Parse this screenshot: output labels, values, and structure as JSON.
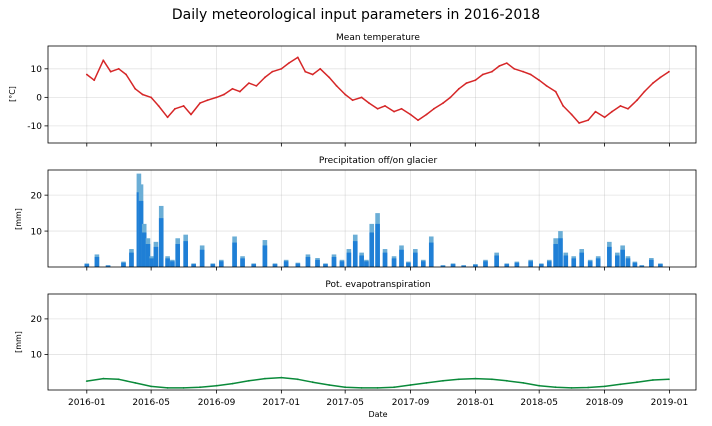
{
  "figure": {
    "title": "Daily meteorological input parameters in 2016-2018",
    "xlabel": "Date"
  },
  "chart_data": [
    {
      "type": "line",
      "title": "Mean temperature",
      "ylabel": "[°C]",
      "ylim": [
        -16,
        18
      ],
      "yticks": [
        -10,
        0,
        10
      ],
      "x_range": [
        "2016-01-01",
        "2018-12-31"
      ],
      "grid": true,
      "series": [
        {
          "color": "#d62728",
          "x": [
            "2016-01-01",
            "2016-01-15",
            "2016-02-01",
            "2016-02-15",
            "2016-03-01",
            "2016-03-15",
            "2016-04-01",
            "2016-04-15",
            "2016-05-01",
            "2016-05-15",
            "2016-06-01",
            "2016-06-15",
            "2016-07-01",
            "2016-07-15",
            "2016-08-01",
            "2016-08-15",
            "2016-09-01",
            "2016-09-15",
            "2016-10-01",
            "2016-10-15",
            "2016-11-01",
            "2016-11-15",
            "2016-12-01",
            "2016-12-15",
            "2017-01-01",
            "2017-01-15",
            "2017-02-01",
            "2017-02-15",
            "2017-03-01",
            "2017-03-15",
            "2017-04-01",
            "2017-04-15",
            "2017-05-01",
            "2017-05-15",
            "2017-06-01",
            "2017-06-15",
            "2017-07-01",
            "2017-07-15",
            "2017-08-01",
            "2017-08-15",
            "2017-09-01",
            "2017-09-15",
            "2017-10-01",
            "2017-10-15",
            "2017-11-01",
            "2017-11-15",
            "2017-12-01",
            "2017-12-15",
            "2018-01-01",
            "2018-01-15",
            "2018-02-01",
            "2018-02-15",
            "2018-03-01",
            "2018-03-15",
            "2018-04-01",
            "2018-04-15",
            "2018-05-01",
            "2018-05-15",
            "2018-06-01",
            "2018-06-15",
            "2018-07-01",
            "2018-07-15",
            "2018-08-01",
            "2018-08-15",
            "2018-09-01",
            "2018-09-15",
            "2018-10-01",
            "2018-10-15",
            "2018-11-01",
            "2018-11-15",
            "2018-12-01",
            "2018-12-15",
            "2018-12-31"
          ],
          "values": [
            8,
            6,
            13,
            9,
            10,
            8,
            3,
            1,
            0,
            -3,
            -7,
            -4,
            -3,
            -6,
            -2,
            -1,
            0,
            1,
            3,
            2,
            5,
            4,
            7,
            9,
            10,
            12,
            14,
            9,
            8,
            10,
            7,
            4,
            1,
            -1,
            0,
            -2,
            -4,
            -3,
            -5,
            -4,
            -6,
            -8,
            -6,
            -4,
            -2,
            0,
            3,
            5,
            6,
            8,
            9,
            11,
            12,
            10,
            9,
            8,
            6,
            4,
            2,
            -3,
            -6,
            -9,
            -8,
            -5,
            -7,
            -5,
            -3,
            -4,
            -1,
            2,
            5,
            7,
            9
          ]
        }
      ]
    },
    {
      "type": "bar",
      "title": "Precipitation off/on glacier",
      "ylabel": "[mm]",
      "ylim": [
        0,
        27
      ],
      "yticks": [
        10,
        20
      ],
      "x_range": [
        "2016-01-01",
        "2018-12-31"
      ],
      "grid": true,
      "series": [
        {
          "name": "",
          "color": "#6baed6",
          "dates": [
            "2016-01-01",
            "2016-01-20",
            "2016-02-10",
            "2016-03-10",
            "2016-03-25",
            "2016-04-08",
            "2016-04-12",
            "2016-04-18",
            "2016-04-25",
            "2016-05-02",
            "2016-05-10",
            "2016-05-20",
            "2016-06-01",
            "2016-06-10",
            "2016-06-20",
            "2016-07-05",
            "2016-07-20",
            "2016-08-05",
            "2016-08-25",
            "2016-09-10",
            "2016-10-05",
            "2016-10-20",
            "2016-11-10",
            "2016-12-01",
            "2016-12-20",
            "2017-01-10",
            "2017-02-01",
            "2017-02-20",
            "2017-03-10",
            "2017-03-25",
            "2017-04-10",
            "2017-04-25",
            "2017-05-08",
            "2017-05-20",
            "2017-06-01",
            "2017-06-10",
            "2017-06-20",
            "2017-07-01",
            "2017-07-15",
            "2017-08-01",
            "2017-08-15",
            "2017-08-28",
            "2017-09-10",
            "2017-09-25",
            "2017-10-10",
            "2017-11-01",
            "2017-11-20",
            "2017-12-10",
            "2018-01-01",
            "2018-01-20",
            "2018-02-10",
            "2018-03-01",
            "2018-03-20",
            "2018-04-15",
            "2018-05-05",
            "2018-05-20",
            "2018-06-01",
            "2018-06-10",
            "2018-06-20",
            "2018-07-05",
            "2018-07-20",
            "2018-08-05",
            "2018-08-20",
            "2018-09-10",
            "2018-09-25",
            "2018-10-05",
            "2018-10-15",
            "2018-10-28",
            "2018-11-10",
            "2018-11-28",
            "2018-12-15"
          ],
          "values": [
            1,
            3.5,
            0.5,
            1.5,
            5,
            26,
            23,
            12,
            8,
            3,
            7,
            17,
            3,
            2,
            8,
            9,
            1,
            6,
            1,
            2,
            8.5,
            3,
            1,
            7.5,
            1,
            2,
            1.2,
            3.5,
            2.5,
            1,
            3.5,
            2,
            5,
            9,
            4,
            2,
            12,
            15,
            5,
            3,
            6,
            1.5,
            5,
            2,
            8.5,
            0.5,
            1,
            0.5,
            0.8,
            2,
            4,
            1,
            1.5,
            2,
            1,
            2,
            8,
            10,
            4,
            3,
            5,
            2,
            3,
            7,
            4,
            6,
            3,
            1.5,
            0.5,
            2.5,
            1
          ]
        },
        {
          "name": "",
          "color": "#1f7fd6",
          "dates": [],
          "values": []
        }
      ]
    },
    {
      "type": "line",
      "title": "Pot. evapotranspiration",
      "ylabel": "[mm]",
      "ylim": [
        0,
        27
      ],
      "yticks": [
        10,
        20
      ],
      "x_range": [
        "2016-01-01",
        "2018-12-31"
      ],
      "grid": true,
      "series": [
        {
          "color": "#0a8a3a",
          "x": [
            "2016-01-01",
            "2016-02-01",
            "2016-03-01",
            "2016-04-01",
            "2016-05-01",
            "2016-06-01",
            "2016-07-01",
            "2016-08-01",
            "2016-09-01",
            "2016-10-01",
            "2016-11-01",
            "2016-12-01",
            "2017-01-01",
            "2017-02-01",
            "2017-03-01",
            "2017-04-01",
            "2017-05-01",
            "2017-06-01",
            "2017-07-01",
            "2017-08-01",
            "2017-09-01",
            "2017-10-01",
            "2017-11-01",
            "2017-12-01",
            "2018-01-01",
            "2018-02-01",
            "2018-03-01",
            "2018-04-01",
            "2018-05-01",
            "2018-06-01",
            "2018-07-01",
            "2018-08-01",
            "2018-09-01",
            "2018-10-01",
            "2018-11-01",
            "2018-12-01",
            "2018-12-31"
          ],
          "values": [
            2.5,
            3.2,
            3,
            2,
            1,
            0.6,
            0.6,
            0.8,
            1.2,
            1.8,
            2.6,
            3.2,
            3.5,
            3,
            2.2,
            1.4,
            0.8,
            0.6,
            0.6,
            0.8,
            1.4,
            2,
            2.6,
            3,
            3.2,
            3,
            2.6,
            2,
            1.2,
            0.8,
            0.6,
            0.7,
            1,
            1.6,
            2.2,
            2.8,
            3
          ]
        }
      ]
    }
  ],
  "xaxis": {
    "ticks": [
      {
        "date": "2016-01-01",
        "label": "2016-01"
      },
      {
        "date": "2016-05-01",
        "label": "2016-05"
      },
      {
        "date": "2016-09-01",
        "label": "2016-09"
      },
      {
        "date": "2017-01-01",
        "label": "2017-01"
      },
      {
        "date": "2017-05-01",
        "label": "2017-05"
      },
      {
        "date": "2017-09-01",
        "label": "2017-09"
      },
      {
        "date": "2018-01-01",
        "label": "2018-01"
      },
      {
        "date": "2018-05-01",
        "label": "2018-05"
      },
      {
        "date": "2018-09-01",
        "label": "2018-09"
      },
      {
        "date": "2019-01-01",
        "label": "2019-01"
      }
    ],
    "range": [
      "2015-10-20",
      "2019-02-20"
    ]
  }
}
